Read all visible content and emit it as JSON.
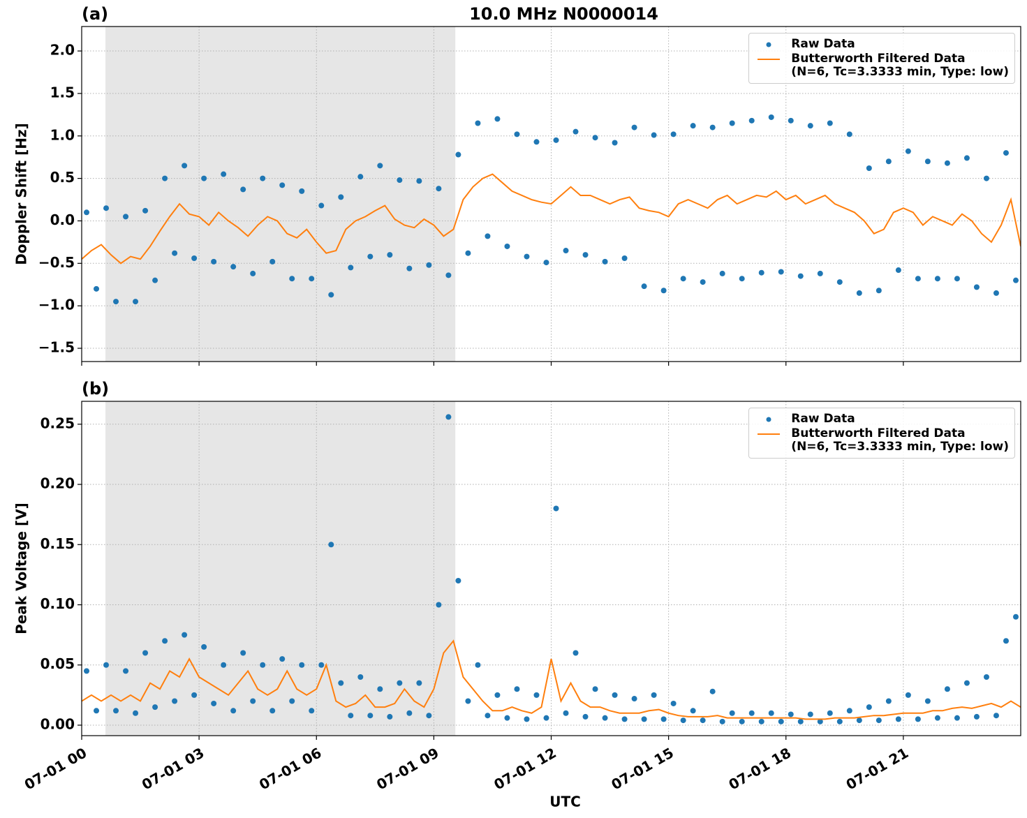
{
  "chart_data": [
    {
      "type": "line",
      "title": "10.0 MHz N0000014",
      "panel_label": "(a)",
      "y_label": "Doppler Shift [Hz]",
      "xlim": [
        0,
        24
      ],
      "xticks": [
        0,
        3,
        6,
        9,
        12,
        15,
        18,
        21
      ],
      "ylim": [
        -1.656,
        2.288
      ],
      "yticks": [
        {
          "value": -1.5,
          "label": "−1.5"
        },
        {
          "value": -1.0,
          "label": "−1.0"
        },
        {
          "value": -0.5,
          "label": "−0.5"
        },
        {
          "value": 0,
          "label": "0.0"
        },
        0.5,
        {
          "value": 1,
          "label": "1.0"
        },
        1.5,
        {
          "value": 2,
          "label": "2.0"
        }
      ],
      "grid": true,
      "legend": "upper right",
      "shaded_span": [
        0.607,
        9.55
      ],
      "shade_color": "#e6e6e6",
      "series": [
        {
          "name": "Raw Data",
          "color": "#1f77b4",
          "mode": "markers",
          "x": [
            0.125,
            0.375,
            0.625,
            0.875,
            1.125,
            1.375,
            1.625,
            1.875,
            2.125,
            2.375,
            2.625,
            2.875,
            3.125,
            3.375,
            3.625,
            3.875,
            4.125,
            4.375,
            4.625,
            4.875,
            5.125,
            5.375,
            5.625,
            5.875,
            6.125,
            6.375,
            6.625,
            6.875,
            7.125,
            7.375,
            7.625,
            7.875,
            8.125,
            8.375,
            8.625,
            8.875,
            9.125,
            9.375,
            9.625,
            9.875,
            10.125,
            10.375,
            10.625,
            10.875,
            11.125,
            11.375,
            11.625,
            11.875,
            12.125,
            12.375,
            12.625,
            12.875,
            13.125,
            13.375,
            13.625,
            13.875,
            14.125,
            14.375,
            14.625,
            14.875,
            15.125,
            15.375,
            15.625,
            15.875,
            16.125,
            16.375,
            16.625,
            16.875,
            17.125,
            17.375,
            17.625,
            17.875,
            18.125,
            18.375,
            18.625,
            18.875,
            19.125,
            19.375,
            19.625,
            19.875,
            20.125,
            20.375,
            20.625,
            20.875,
            21.125,
            21.375,
            21.625,
            21.875,
            22.125,
            22.375,
            22.625,
            22.875,
            23.125,
            23.375,
            23.625,
            23.875
          ],
          "values": [
            0.1,
            -0.8,
            0.15,
            -0.95,
            0.05,
            -0.95,
            0.12,
            -0.7,
            0.5,
            -0.38,
            0.65,
            -0.44,
            0.5,
            -0.48,
            0.55,
            -0.54,
            0.37,
            -0.62,
            0.5,
            -0.48,
            0.42,
            -0.68,
            0.35,
            -0.68,
            0.18,
            -0.87,
            0.28,
            -0.55,
            0.52,
            -0.42,
            0.65,
            -0.4,
            0.48,
            -0.56,
            0.47,
            -0.52,
            0.38,
            -0.64,
            0.78,
            -0.38,
            1.15,
            -0.18,
            1.2,
            -0.3,
            1.02,
            -0.42,
            0.93,
            -0.49,
            0.95,
            -0.35,
            1.05,
            -0.4,
            0.98,
            -0.48,
            0.92,
            -0.44,
            1.1,
            -0.77,
            1.01,
            -0.82,
            1.02,
            -0.68,
            1.12,
            -0.72,
            1.1,
            -0.62,
            1.15,
            -0.68,
            1.18,
            -0.61,
            1.22,
            -0.6,
            1.18,
            -0.65,
            1.12,
            -0.62,
            1.15,
            -0.72,
            1.02,
            -0.85,
            0.62,
            -0.82,
            0.7,
            -0.58,
            0.82,
            -0.68,
            0.7,
            -0.68,
            0.68,
            -0.68,
            0.74,
            -0.78,
            0.5,
            -0.85,
            0.8,
            -0.7
          ]
        },
        {
          "name": "Butterworth Filtered Data\n(N=6, Tc=3.3333 min, Type: low)",
          "color": "#ff7f0e",
          "mode": "line",
          "x": [
            0,
            0.25,
            0.5,
            0.75,
            1,
            1.25,
            1.5,
            1.75,
            2,
            2.25,
            2.5,
            2.75,
            3,
            3.25,
            3.5,
            3.75,
            4,
            4.25,
            4.5,
            4.75,
            5,
            5.25,
            5.5,
            5.75,
            6,
            6.25,
            6.5,
            6.75,
            7,
            7.25,
            7.5,
            7.75,
            8,
            8.25,
            8.5,
            8.75,
            9,
            9.25,
            9.5,
            9.75,
            10,
            10.25,
            10.5,
            10.75,
            11,
            11.25,
            11.5,
            11.75,
            12,
            12.25,
            12.5,
            12.75,
            13,
            13.25,
            13.5,
            13.75,
            14,
            14.25,
            14.5,
            14.75,
            15,
            15.25,
            15.5,
            15.75,
            16,
            16.25,
            16.5,
            16.75,
            17,
            17.25,
            17.5,
            17.75,
            18,
            18.25,
            18.5,
            18.75,
            19,
            19.25,
            19.5,
            19.75,
            20,
            20.25,
            20.5,
            20.75,
            21,
            21.25,
            21.5,
            21.75,
            22,
            22.25,
            22.5,
            22.75,
            23,
            23.25,
            23.5,
            23.75,
            24
          ],
          "values": [
            -0.45,
            -0.35,
            -0.28,
            -0.4,
            -0.5,
            -0.42,
            -0.45,
            -0.3,
            -0.12,
            0.05,
            0.2,
            0.08,
            0.05,
            -0.05,
            0.1,
            0,
            -0.08,
            -0.18,
            -0.05,
            0.05,
            0,
            -0.15,
            -0.2,
            -0.1,
            -0.25,
            -0.38,
            -0.35,
            -0.1,
            0,
            0.05,
            0.12,
            0.18,
            0.02,
            -0.05,
            -0.08,
            0.02,
            -0.05,
            -0.18,
            -0.1,
            0.25,
            0.4,
            0.5,
            0.55,
            0.45,
            0.35,
            0.3,
            0.25,
            0.22,
            0.2,
            0.3,
            0.4,
            0.3,
            0.3,
            0.25,
            0.2,
            0.25,
            0.28,
            0.15,
            0.12,
            0.1,
            0.05,
            0.2,
            0.25,
            0.2,
            0.15,
            0.25,
            0.3,
            0.2,
            0.25,
            0.3,
            0.28,
            0.35,
            0.25,
            0.3,
            0.2,
            0.25,
            0.3,
            0.2,
            0.15,
            0.1,
            0,
            -0.15,
            -0.1,
            0.1,
            0.15,
            0.1,
            -0.05,
            0.05,
            0,
            -0.05,
            0.08,
            0,
            -0.15,
            -0.25,
            -0.05,
            0.25,
            -0.3
          ]
        }
      ]
    },
    {
      "type": "line",
      "panel_label": "(b)",
      "y_label": "Peak Voltage [V]",
      "x_label": "UTC",
      "xlim": [
        0,
        24
      ],
      "xticks": [
        {
          "value": 0,
          "label": "07-01 00"
        },
        {
          "value": 3,
          "label": "07-01 03"
        },
        {
          "value": 6,
          "label": "07-01 06"
        },
        {
          "value": 9,
          "label": "07-01 09"
        },
        {
          "value": 12,
          "label": "07-01 12"
        },
        {
          "value": 15,
          "label": "07-01 15"
        },
        {
          "value": 18,
          "label": "07-01 18"
        },
        {
          "value": 21,
          "label": "07-01 21"
        }
      ],
      "ylim": [
        -0.0087,
        0.269
      ],
      "yticks": [
        {
          "value": 0,
          "label": "0.00"
        },
        0.05,
        {
          "value": 0.1,
          "label": "0.10"
        },
        0.15,
        {
          "value": 0.2,
          "label": "0.20"
        },
        0.25
      ],
      "grid": true,
      "legend": "upper right",
      "shaded_span": [
        0.607,
        9.55
      ],
      "shade_color": "#e6e6e6",
      "series": [
        {
          "name": "Raw Data",
          "color": "#1f77b4",
          "mode": "markers",
          "x": [
            0.125,
            0.375,
            0.625,
            0.875,
            1.125,
            1.375,
            1.625,
            1.875,
            2.125,
            2.375,
            2.625,
            2.875,
            3.125,
            3.375,
            3.625,
            3.875,
            4.125,
            4.375,
            4.625,
            4.875,
            5.125,
            5.375,
            5.625,
            5.875,
            6.125,
            6.375,
            6.625,
            6.875,
            7.125,
            7.375,
            7.625,
            7.875,
            8.125,
            8.375,
            8.625,
            8.875,
            9.125,
            9.375,
            9.625,
            9.875,
            10.125,
            10.375,
            10.625,
            10.875,
            11.125,
            11.375,
            11.625,
            11.875,
            12.125,
            12.375,
            12.625,
            12.875,
            13.125,
            13.375,
            13.625,
            13.875,
            14.125,
            14.375,
            14.625,
            14.875,
            15.125,
            15.375,
            15.625,
            15.875,
            16.125,
            16.375,
            16.625,
            16.875,
            17.125,
            17.375,
            17.625,
            17.875,
            18.125,
            18.375,
            18.625,
            18.875,
            19.125,
            19.375,
            19.625,
            19.875,
            20.125,
            20.375,
            20.625,
            20.875,
            21.125,
            21.375,
            21.625,
            21.875,
            22.125,
            22.375,
            22.625,
            22.875,
            23.125,
            23.375,
            23.625,
            23.875
          ],
          "values": [
            0.045,
            0.012,
            0.05,
            0.012,
            0.045,
            0.01,
            0.06,
            0.015,
            0.07,
            0.02,
            0.075,
            0.025,
            0.065,
            0.018,
            0.05,
            0.012,
            0.06,
            0.02,
            0.05,
            0.012,
            0.055,
            0.02,
            0.05,
            0.012,
            0.05,
            0.15,
            0.035,
            0.008,
            0.04,
            0.008,
            0.03,
            0.007,
            0.035,
            0.01,
            0.035,
            0.008,
            0.1,
            0.256,
            0.12,
            0.02,
            0.05,
            0.008,
            0.025,
            0.006,
            0.03,
            0.005,
            0.025,
            0.006,
            0.18,
            0.01,
            0.06,
            0.007,
            0.03,
            0.006,
            0.025,
            0.005,
            0.022,
            0.005,
            0.025,
            0.005,
            0.018,
            0.004,
            0.012,
            0.004,
            0.028,
            0.003,
            0.01,
            0.003,
            0.01,
            0.003,
            0.01,
            0.003,
            0.009,
            0.003,
            0.009,
            0.003,
            0.01,
            0.003,
            0.012,
            0.004,
            0.015,
            0.004,
            0.02,
            0.005,
            0.025,
            0.005,
            0.02,
            0.006,
            0.03,
            0.006,
            0.035,
            0.007,
            0.04,
            0.008,
            0.07,
            0.09
          ]
        },
        {
          "name": "Butterworth Filtered Data\n(N=6, Tc=3.3333 min, Type: low)",
          "color": "#ff7f0e",
          "mode": "line",
          "x": [
            0,
            0.25,
            0.5,
            0.75,
            1,
            1.25,
            1.5,
            1.75,
            2,
            2.25,
            2.5,
            2.75,
            3,
            3.25,
            3.5,
            3.75,
            4,
            4.25,
            4.5,
            4.75,
            5,
            5.25,
            5.5,
            5.75,
            6,
            6.25,
            6.5,
            6.75,
            7,
            7.25,
            7.5,
            7.75,
            8,
            8.25,
            8.5,
            8.75,
            9,
            9.25,
            9.5,
            9.75,
            10,
            10.25,
            10.5,
            10.75,
            11,
            11.25,
            11.5,
            11.75,
            12,
            12.25,
            12.5,
            12.75,
            13,
            13.25,
            13.5,
            13.75,
            14,
            14.25,
            14.5,
            14.75,
            15,
            15.25,
            15.5,
            15.75,
            16,
            16.25,
            16.5,
            16.75,
            17,
            17.25,
            17.5,
            17.75,
            18,
            18.25,
            18.5,
            18.75,
            19,
            19.25,
            19.5,
            19.75,
            20,
            20.25,
            20.5,
            20.75,
            21,
            21.25,
            21.5,
            21.75,
            22,
            22.25,
            22.5,
            22.75,
            23,
            23.25,
            23.5,
            23.75,
            24
          ],
          "values": [
            0.02,
            0.025,
            0.02,
            0.025,
            0.02,
            0.025,
            0.02,
            0.035,
            0.03,
            0.045,
            0.04,
            0.055,
            0.04,
            0.035,
            0.03,
            0.025,
            0.035,
            0.045,
            0.03,
            0.025,
            0.03,
            0.045,
            0.03,
            0.025,
            0.03,
            0.05,
            0.02,
            0.015,
            0.018,
            0.025,
            0.015,
            0.015,
            0.018,
            0.03,
            0.02,
            0.015,
            0.03,
            0.06,
            0.07,
            0.04,
            0.03,
            0.02,
            0.012,
            0.012,
            0.015,
            0.012,
            0.01,
            0.015,
            0.055,
            0.02,
            0.035,
            0.02,
            0.015,
            0.015,
            0.012,
            0.01,
            0.01,
            0.01,
            0.012,
            0.013,
            0.01,
            0.008,
            0.007,
            0.007,
            0.007,
            0.008,
            0.006,
            0.006,
            0.006,
            0.006,
            0.006,
            0.006,
            0.006,
            0.006,
            0.005,
            0.005,
            0.005,
            0.006,
            0.006,
            0.006,
            0.007,
            0.008,
            0.008,
            0.009,
            0.01,
            0.01,
            0.01,
            0.012,
            0.012,
            0.014,
            0.015,
            0.014,
            0.016,
            0.018,
            0.015,
            0.02,
            0.015
          ]
        }
      ]
    }
  ]
}
